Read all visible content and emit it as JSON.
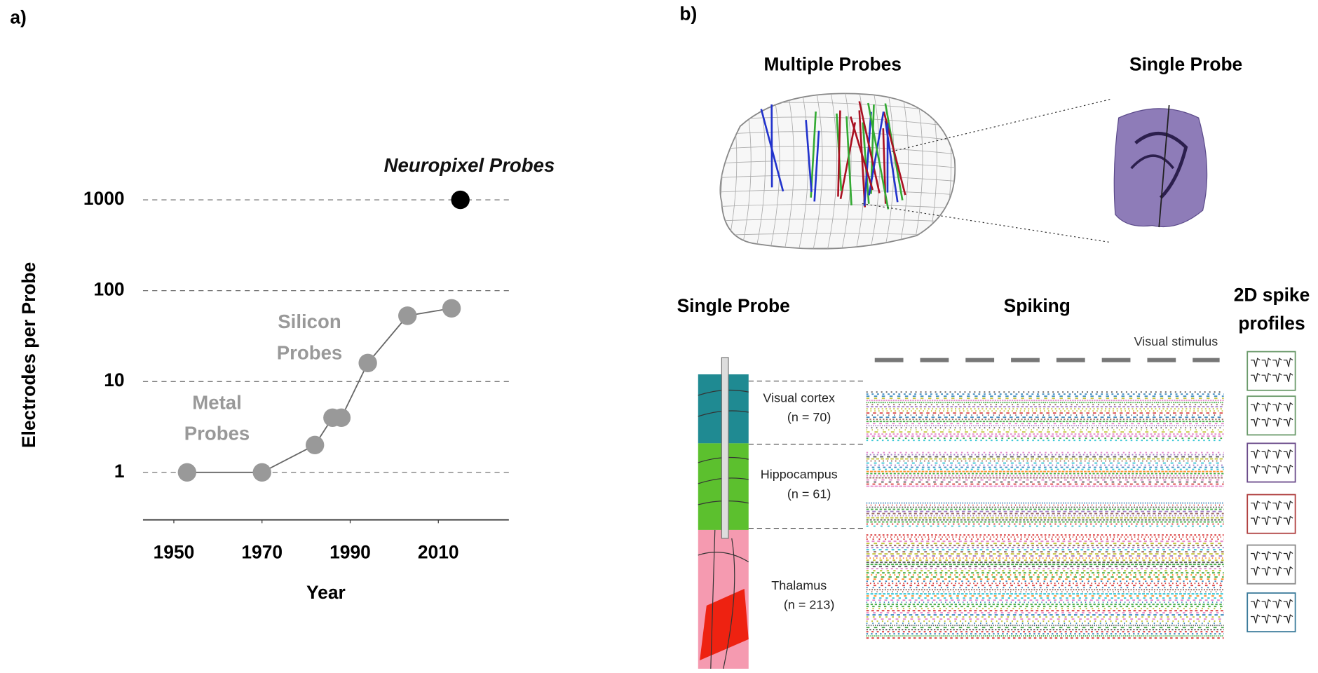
{
  "panel_labels": [
    "a)",
    "b)"
  ],
  "chart_data": {
    "type": "line",
    "xlabel": "Year",
    "ylabel": "Electrodes per Probe",
    "series": [
      {
        "color": "#999999",
        "x": [
          1953,
          1970,
          1982,
          1986,
          1988,
          1994,
          2003,
          2013
        ],
        "values": [
          1,
          1,
          2,
          4,
          4,
          16,
          53,
          64
        ]
      },
      {
        "color": "#000000",
        "x": [
          2015
        ],
        "values": [
          1000
        ]
      }
    ],
    "annotations": [
      [
        "Neuropixel Probes"
      ],
      [
        "Silicon",
        "Probes"
      ],
      [
        "Metal",
        "Probes"
      ]
    ],
    "xlim": [
      1943,
      2026
    ],
    "xticks": [
      1950,
      1970,
      1990,
      2010
    ],
    "ylim": [
      0.3,
      3000
    ],
    "yticks": [
      1,
      10,
      100,
      1000
    ],
    "yscale": "log",
    "grid": true
  },
  "panel_b": {
    "top_titles": [
      "Multiple Probes",
      "Single Probe"
    ],
    "bottom_titles": [
      [
        "Single Probe"
      ],
      [
        "Spiking"
      ],
      [
        "2D spike",
        "profiles"
      ]
    ],
    "stimulus_label": "Visual stimulus",
    "regions": [
      {
        "name": "Visual cortex",
        "count": "(n = 70)"
      },
      {
        "name": "Hippocampus",
        "count": "(n = 61)"
      },
      {
        "name": "Thalamus",
        "count": "(n = 213)"
      }
    ]
  }
}
